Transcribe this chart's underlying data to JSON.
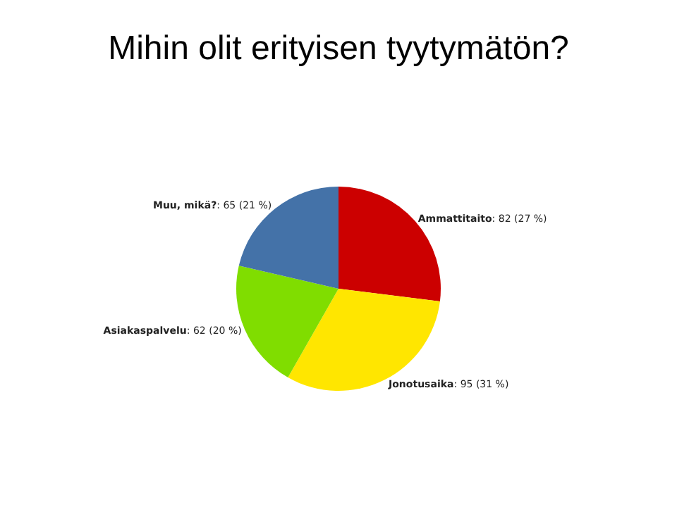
{
  "chart_data": {
    "type": "pie",
    "title": "Mihin olit erityisen tyytymätön?",
    "categories": [
      "Ammattitaito",
      "Jonotusaika",
      "Asiakaspalvelu",
      "Muu, mikä?"
    ],
    "values": [
      82,
      95,
      62,
      65
    ],
    "value_labels": [
      ": 82 (27 %)",
      ": 95 (31 %)",
      ": 62 (20 %)",
      ": 65 (21 %)"
    ],
    "colors": [
      "#cc0000",
      "#ffe600",
      "#80dd00",
      "#4472a8"
    ]
  }
}
